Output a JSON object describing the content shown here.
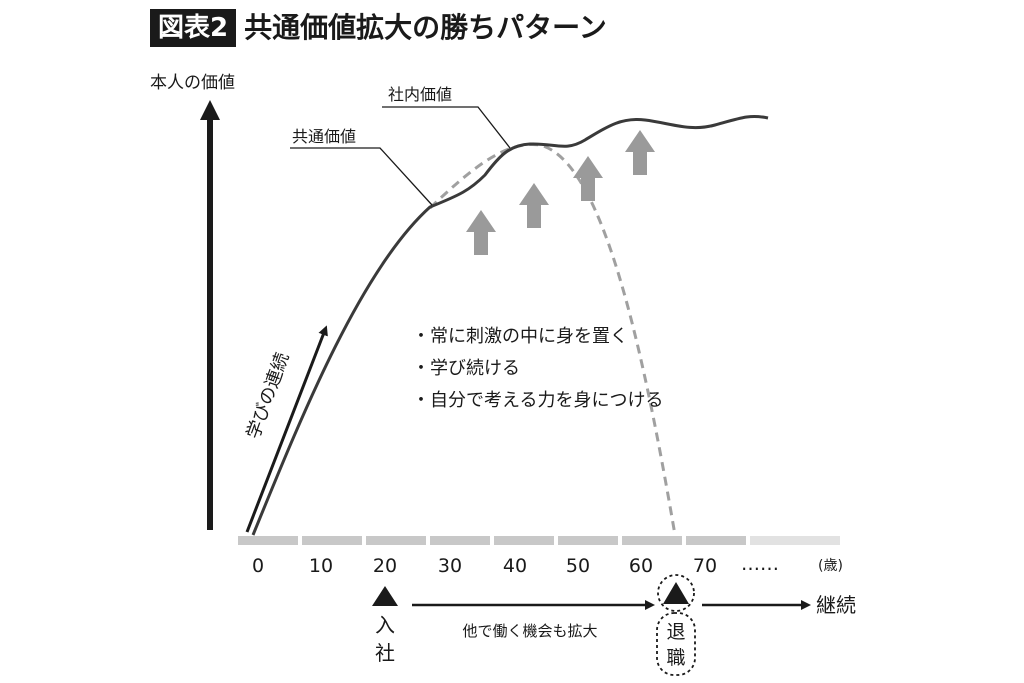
{
  "header": {
    "badge": "図表2",
    "title": "共通価値拡大の勝ちパターン"
  },
  "axes": {
    "y_label": "本人の価値",
    "x_ticks": [
      "0",
      "10",
      "20",
      "30",
      "40",
      "50",
      "60",
      "70",
      "……"
    ],
    "x_unit": "(歳)"
  },
  "curves": {
    "shared_value_label": "共通価値",
    "internal_value_label": "社内価値"
  },
  "learning_arrow_label": "学びの連続",
  "bullets": [
    "・常に刺激の中に身を置く",
    "・学び続ける",
    "・自分で考える力を身につける"
  ],
  "timeline": {
    "join_label": "入社",
    "middle_label": "他で働く機会も拡大",
    "retire_label": "退職",
    "continue_label": "継続"
  },
  "colors": {
    "ink": "#1a1a1a",
    "axis_gray": "#c8c8c8",
    "dashed_gray": "#a0a0a0",
    "arrow_gray": "#9a9a9a"
  }
}
